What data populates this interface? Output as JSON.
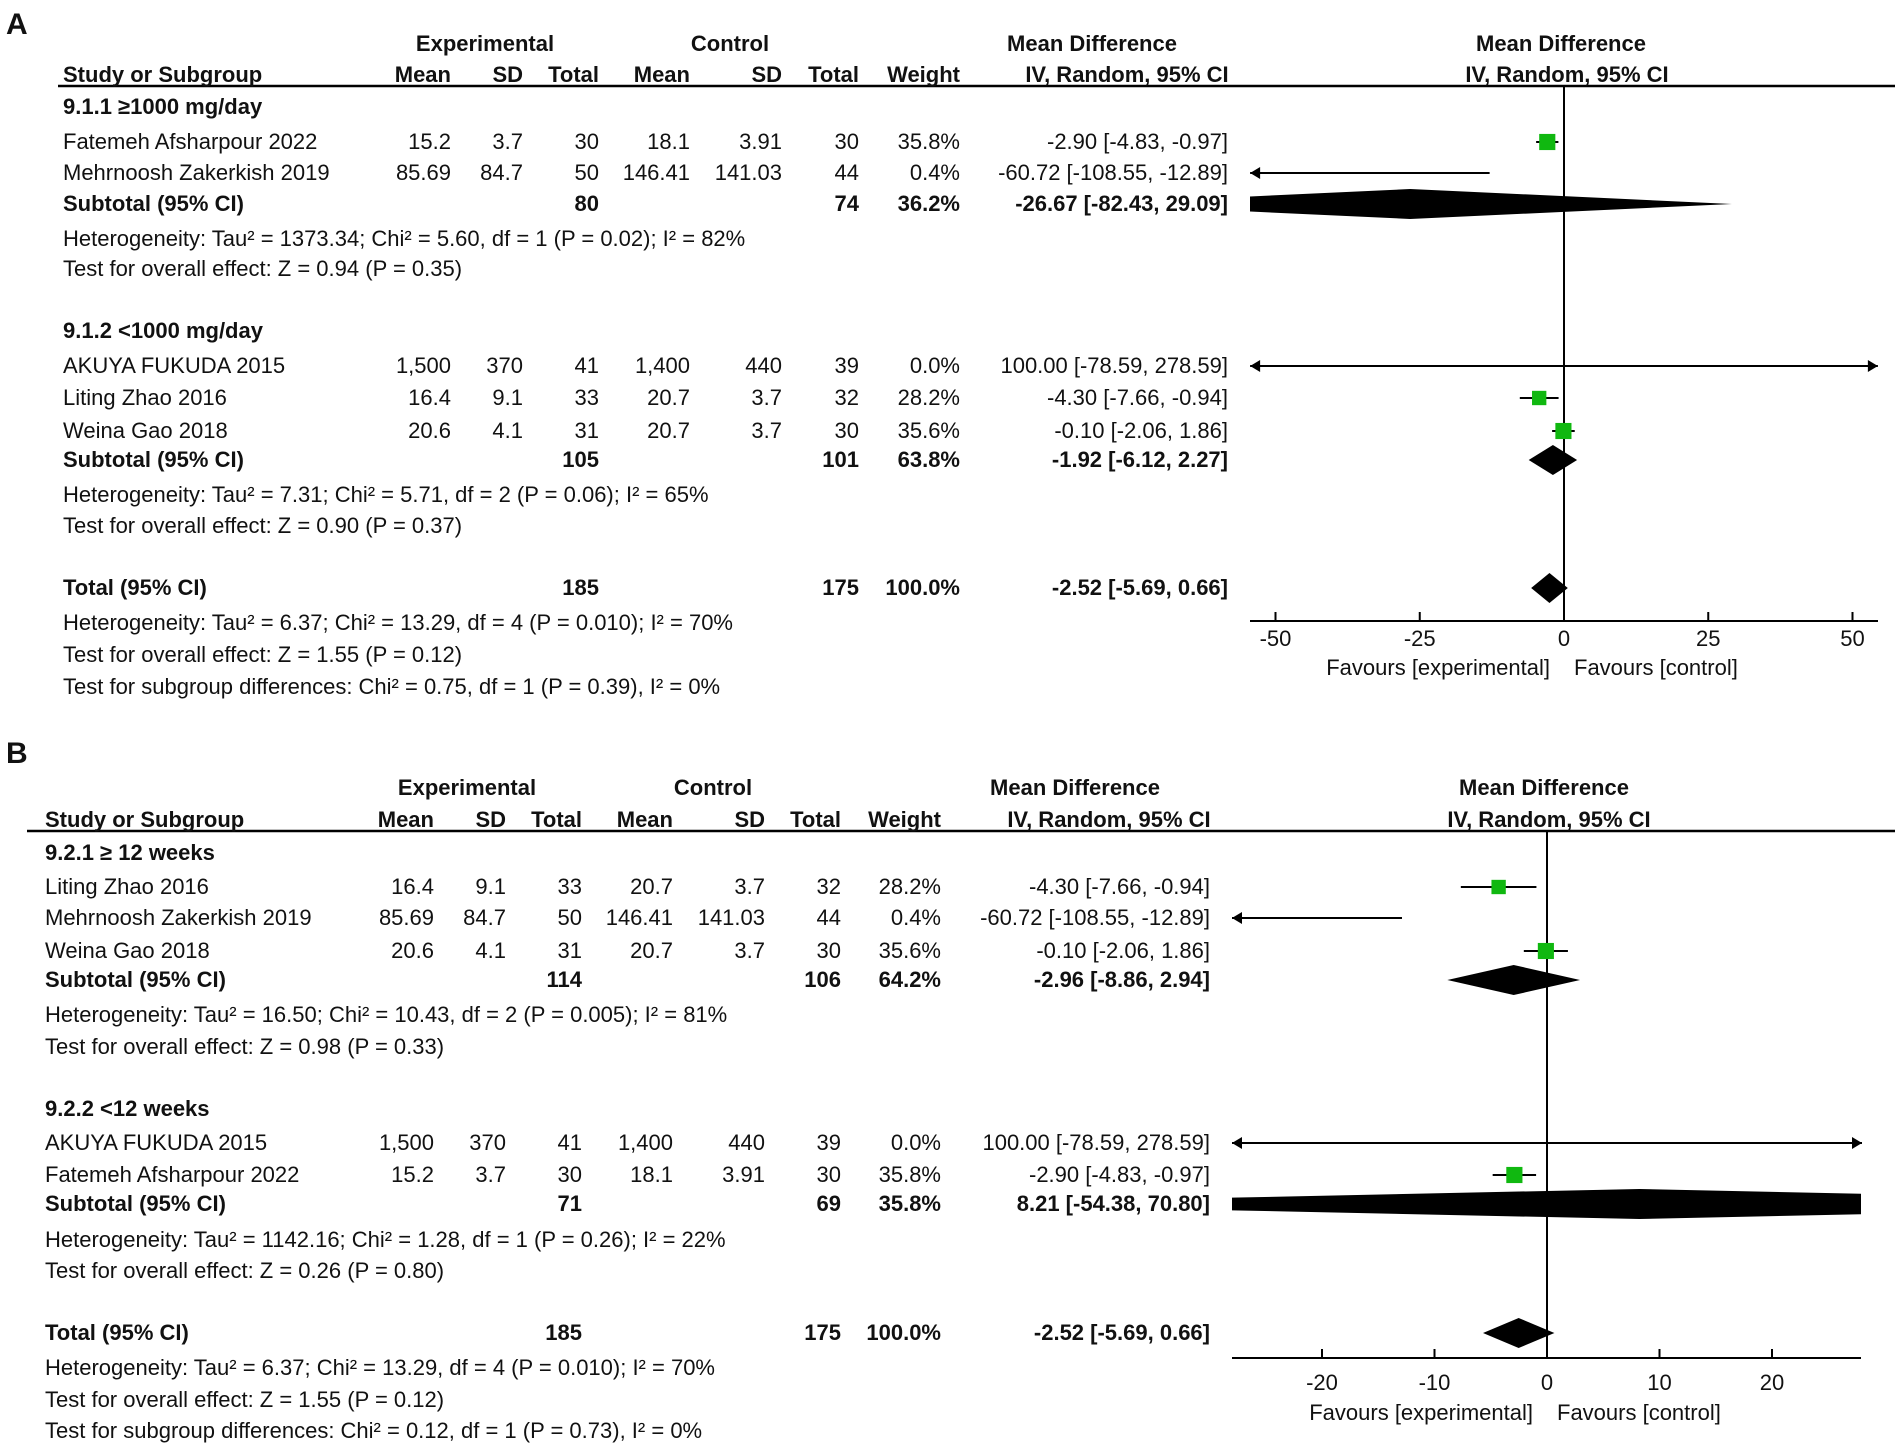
{
  "chart_data": [
    {
      "type": "forest",
      "panel_label": "A",
      "header": {
        "experimental": "Experimental",
        "control": "Control",
        "mean_difference": "Mean Difference",
        "plot_title": "Mean Difference",
        "columns": [
          "Study or Subgroup",
          "Mean",
          "SD",
          "Total",
          "Mean",
          "SD",
          "Total",
          "Weight"
        ],
        "ci_method": "IV, Random, 95% CI",
        "plot_method": "IV, Random, 95% CI"
      },
      "groups": [
        {
          "title": "9.1.1 ≥1000 mg/day",
          "studies": [
            {
              "name": "Fatemeh Afsharpour 2022",
              "cells": [
                "15.2",
                "3.7",
                "30",
                "18.1",
                "3.91",
                "30",
                "35.8%"
              ],
              "ci_text": "-2.90 [-4.83, -0.97]",
              "md": -2.9,
              "lo": -4.83,
              "hi": -0.97,
              "weight": 35.8
            },
            {
              "name": "Mehrnoosh Zakerkish 2019",
              "cells": [
                "85.69",
                "84.7",
                "50",
                "146.41",
                "141.03",
                "44",
                "0.4%"
              ],
              "ci_text": "-60.72 [-108.55, -12.89]",
              "md": -60.72,
              "lo": -108.55,
              "hi": -12.89,
              "weight": 0.4
            }
          ],
          "subtotal": {
            "label": "Subtotal (95% CI)",
            "exp_total": "80",
            "ctrl_total": "74",
            "weight_text": "36.2%",
            "ci_text": "-26.67 [-82.43, 29.09]",
            "md": -26.67,
            "lo": -82.43,
            "hi": 29.09
          },
          "heterogeneity": "Heterogeneity: Tau² = 1373.34; Chi² = 5.60, df = 1 (P = 0.02); I² = 82%",
          "overall_effect": "Test for overall effect: Z = 0.94 (P = 0.35)"
        },
        {
          "title": "9.1.2 <1000 mg/day",
          "studies": [
            {
              "name": "AKUYA FUKUDA 2015",
              "cells": [
                "1,500",
                "370",
                "41",
                "1,400",
                "440",
                "39",
                "0.0%"
              ],
              "ci_text": "100.00 [-78.59, 278.59]",
              "md": 100.0,
              "lo": -78.59,
              "hi": 278.59,
              "weight": 0.0
            },
            {
              "name": "Liting Zhao 2016",
              "cells": [
                "16.4",
                "9.1",
                "33",
                "20.7",
                "3.7",
                "32",
                "28.2%"
              ],
              "ci_text": "-4.30 [-7.66, -0.94]",
              "md": -4.3,
              "lo": -7.66,
              "hi": -0.94,
              "weight": 28.2
            },
            {
              "name": "Weina Gao 2018",
              "cells": [
                "20.6",
                "4.1",
                "31",
                "20.7",
                "3.7",
                "30",
                "35.6%"
              ],
              "ci_text": "-0.10 [-2.06, 1.86]",
              "md": -0.1,
              "lo": -2.06,
              "hi": 1.86,
              "weight": 35.6
            }
          ],
          "subtotal": {
            "label": "Subtotal (95% CI)",
            "exp_total": "105",
            "ctrl_total": "101",
            "weight_text": "63.8%",
            "ci_text": "-1.92 [-6.12, 2.27]",
            "md": -1.92,
            "lo": -6.12,
            "hi": 2.27
          },
          "heterogeneity": "Heterogeneity: Tau² = 7.31; Chi² = 5.71, df = 2 (P = 0.06); I² = 65%",
          "overall_effect": "Test for overall effect: Z = 0.90 (P = 0.37)"
        }
      ],
      "total": {
        "label": "Total (95% CI)",
        "exp_total": "185",
        "ctrl_total": "175",
        "weight_text": "100.0%",
        "ci_text": "-2.52 [-5.69, 0.66]",
        "md": -2.52,
        "lo": -5.69,
        "hi": 0.66
      },
      "total_heterogeneity": "Heterogeneity: Tau² = 6.37; Chi² = 13.29, df = 4 (P = 0.010); I² = 70%",
      "total_overall_effect": "Test for overall effect: Z = 1.55 (P = 0.12)",
      "subgroup_differences": "Test for subgroup differences: Chi² = 0.75, df = 1 (P = 0.39), I² = 0%",
      "axis": {
        "ticks": [
          "-50",
          "-25",
          "0",
          "25",
          "50"
        ],
        "tick_values": [
          -50,
          -25,
          0,
          25,
          50
        ],
        "xlim": [
          -54.4,
          54.4
        ],
        "favours_left": "Favours [experimental]",
        "favours_right": "Favours [control]"
      }
    },
    {
      "type": "forest",
      "panel_label": "B",
      "header": {
        "experimental": "Experimental",
        "control": "Control",
        "mean_difference": "Mean Difference",
        "plot_title": "Mean Difference",
        "columns": [
          "Study or Subgroup",
          "Mean",
          "SD",
          "Total",
          "Mean",
          "SD",
          "Total",
          "Weight"
        ],
        "ci_method": "IV, Random, 95% CI",
        "plot_method": "IV, Random, 95% CI"
      },
      "groups": [
        {
          "title": "9.2.1 ≥ 12 weeks",
          "studies": [
            {
              "name": "Liting Zhao 2016",
              "cells": [
                "16.4",
                "9.1",
                "33",
                "20.7",
                "3.7",
                "32",
                "28.2%"
              ],
              "ci_text": "-4.30 [-7.66, -0.94]",
              "md": -4.3,
              "lo": -7.66,
              "hi": -0.94,
              "weight": 28.2
            },
            {
              "name": "Mehrnoosh Zakerkish 2019",
              "cells": [
                "85.69",
                "84.7",
                "50",
                "146.41",
                "141.03",
                "44",
                "0.4%"
              ],
              "ci_text": "-60.72 [-108.55, -12.89]",
              "md": -60.72,
              "lo": -108.55,
              "hi": -12.89,
              "weight": 0.4
            },
            {
              "name": "Weina Gao 2018",
              "cells": [
                "20.6",
                "4.1",
                "31",
                "20.7",
                "3.7",
                "30",
                "35.6%"
              ],
              "ci_text": "-0.10 [-2.06, 1.86]",
              "md": -0.1,
              "lo": -2.06,
              "hi": 1.86,
              "weight": 35.6
            }
          ],
          "subtotal": {
            "label": "Subtotal (95% CI)",
            "exp_total": "114",
            "ctrl_total": "106",
            "weight_text": "64.2%",
            "ci_text": "-2.96 [-8.86, 2.94]",
            "md": -2.96,
            "lo": -8.86,
            "hi": 2.94
          },
          "heterogeneity": "Heterogeneity: Tau² = 16.50; Chi² = 10.43, df = 2 (P = 0.005); I² = 81%",
          "overall_effect": "Test for overall effect: Z = 0.98 (P = 0.33)"
        },
        {
          "title": "9.2.2 <12 weeks",
          "studies": [
            {
              "name": "AKUYA FUKUDA 2015",
              "cells": [
                "1,500",
                "370",
                "41",
                "1,400",
                "440",
                "39",
                "0.0%"
              ],
              "ci_text": "100.00 [-78.59, 278.59]",
              "md": 100.0,
              "lo": -78.59,
              "hi": 278.59,
              "weight": 0.0
            },
            {
              "name": "Fatemeh Afsharpour 2022",
              "cells": [
                "15.2",
                "3.7",
                "30",
                "18.1",
                "3.91",
                "30",
                "35.8%"
              ],
              "ci_text": "-2.90 [-4.83, -0.97]",
              "md": -2.9,
              "lo": -4.83,
              "hi": -0.97,
              "weight": 35.8
            }
          ],
          "subtotal": {
            "label": "Subtotal (95% CI)",
            "exp_total": "71",
            "ctrl_total": "69",
            "weight_text": "35.8%",
            "ci_text": "8.21 [-54.38, 70.80]",
            "md": 8.21,
            "lo": -54.38,
            "hi": 70.8
          },
          "heterogeneity": "Heterogeneity: Tau² = 1142.16; Chi² = 1.28, df = 1 (P = 0.26); I² = 22%",
          "overall_effect": "Test for overall effect: Z = 0.26 (P = 0.80)"
        }
      ],
      "total": {
        "label": "Total (95% CI)",
        "exp_total": "185",
        "ctrl_total": "175",
        "weight_text": "100.0%",
        "ci_text": "-2.52 [-5.69, 0.66]",
        "md": -2.52,
        "lo": -5.69,
        "hi": 0.66
      },
      "total_heterogeneity": "Heterogeneity: Tau² = 6.37; Chi² = 13.29, df = 4 (P = 0.010); I² = 70%",
      "total_overall_effect": "Test for overall effect: Z = 1.55 (P = 0.12)",
      "subgroup_differences": "Test for subgroup differences: Chi² = 0.12, df = 1 (P = 0.73), I² = 0%",
      "axis": {
        "ticks": [
          "-20",
          "-10",
          "0",
          "10",
          "20"
        ],
        "tick_values": [
          -20,
          -10,
          0,
          10,
          20
        ],
        "xlim": [
          -28,
          28
        ],
        "favours_left": "Favours [experimental]",
        "favours_right": "Favours [control]"
      }
    }
  ],
  "colors": {
    "square": "#10b810",
    "diamond": "#000000",
    "lines": "#000000"
  }
}
